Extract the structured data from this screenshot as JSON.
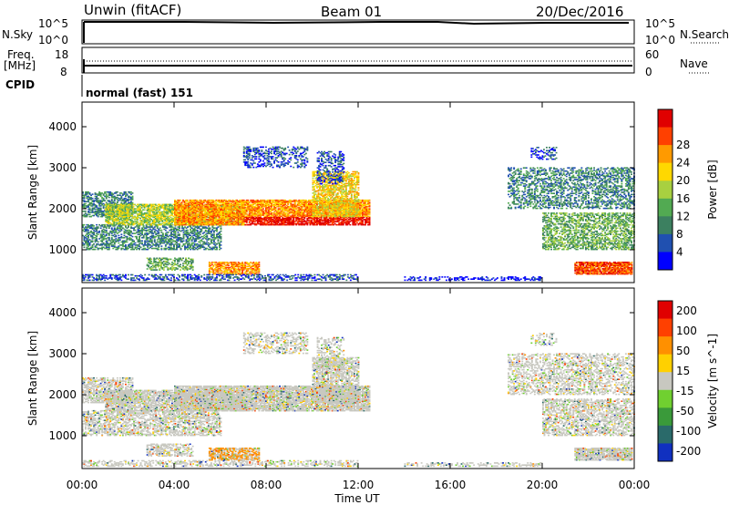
{
  "header": {
    "title": "Unwin (fitACF)",
    "beam": "Beam 01",
    "date": "20/Dec/2016"
  },
  "top_panels": {
    "nsky_label": "N.Sky",
    "nsearch_label": "N.Search",
    "nsky_ticks": [
      "10^5",
      "10^0"
    ],
    "nsky_right_ticks": [
      "10^5",
      "10^0"
    ],
    "freq_label": "Freq.",
    "freq_unit": "[MHz]",
    "freq_ticks": [
      "18",
      "8"
    ],
    "nave_label": "Nave",
    "nave_ticks": [
      "60",
      "0"
    ],
    "cpid_label": "CPID",
    "cpid_value": "normal (fast) 151"
  },
  "chart_data": [
    {
      "type": "heatmap",
      "ylabel": "Slant Range [km]",
      "yticks": [
        "1000",
        "2000",
        "3000",
        "4000"
      ],
      "ylim": [
        200,
        4600
      ],
      "xlim": [
        0,
        24
      ],
      "colorbar": {
        "label": "Power [dB]",
        "ticks": [
          "4",
          "8",
          "12",
          "16",
          "20",
          "24",
          "28"
        ],
        "colors": [
          "#0000ff",
          "#2050b0",
          "#3c8060",
          "#52aa52",
          "#a8d040",
          "#ffd800",
          "#ff9a00",
          "#ff4000",
          "#e00000"
        ]
      }
    },
    {
      "type": "heatmap",
      "ylabel": "Slant Range [km]",
      "yticks": [
        "1000",
        "2000",
        "3000",
        "4000"
      ],
      "ylim": [
        200,
        4600
      ],
      "xlim": [
        0,
        24
      ],
      "xlabel": "Time UT",
      "xticks": [
        "00:00",
        "04:00",
        "08:00",
        "12:00",
        "16:00",
        "20:00",
        "00:00"
      ],
      "colorbar": {
        "label": "Velocity [m s^-1]",
        "ticks": [
          "200",
          "100",
          "50",
          "15",
          "-15",
          "-50",
          "-100",
          "-200"
        ],
        "colors": [
          "#1030c0",
          "#2a6a6a",
          "#3a9a3a",
          "#70d030",
          "#c8c8c0",
          "#ffd000",
          "#ff9000",
          "#ff4000",
          "#e00000"
        ]
      }
    }
  ]
}
